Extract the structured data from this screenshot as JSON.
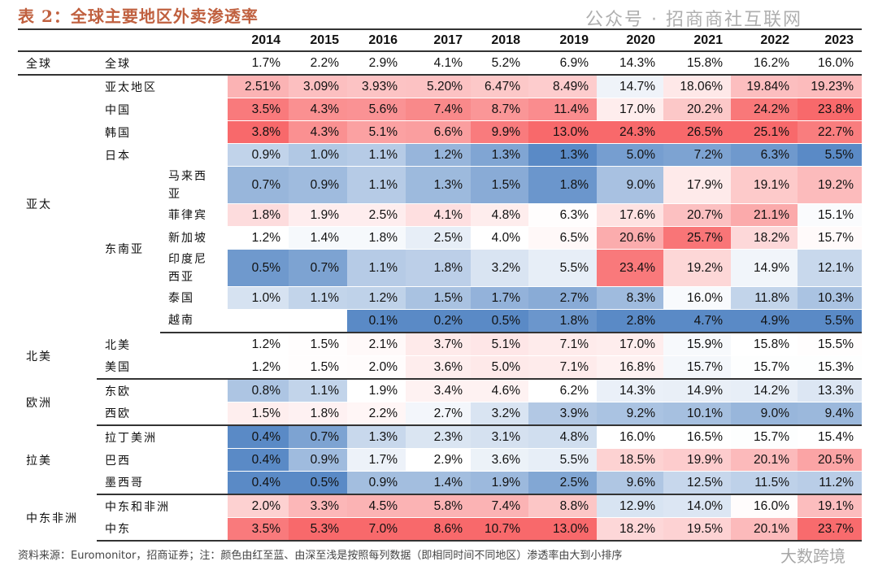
{
  "title": "表 2：全球主要地区外卖渗透率",
  "years": [
    "2014",
    "2015",
    "2016",
    "2017",
    "2018",
    "2019",
    "2020",
    "2021",
    "2022",
    "2023"
  ],
  "heat_colors": {
    "high": "#F8696B",
    "mid": "#FFFFFF",
    "low": "#5A8AC6"
  },
  "rows": [
    {
      "g": "全球",
      "s": "全球",
      "n": "",
      "v": [
        "1.7%",
        "2.2%",
        "2.9%",
        "4.1%",
        "5.2%",
        "6.9%",
        "14.3%",
        "15.8%",
        "16.2%",
        "16.0%"
      ],
      "heat": false
    },
    {
      "g": "亚太",
      "s": "亚太地区",
      "n": "",
      "v": [
        "2.51%",
        "3.09%",
        "3.93%",
        "5.20%",
        "6.47%",
        "8.49%",
        "14.7%",
        "18.06%",
        "19.84%",
        "19.23%"
      ]
    },
    {
      "g": "亚太",
      "s": "中国",
      "n": "",
      "v": [
        "3.5%",
        "4.3%",
        "5.6%",
        "7.4%",
        "8.7%",
        "11.4%",
        "17.0%",
        "20.2%",
        "24.2%",
        "23.8%"
      ]
    },
    {
      "g": "亚太",
      "s": "韩国",
      "n": "",
      "v": [
        "3.8%",
        "4.3%",
        "5.1%",
        "6.6%",
        "9.9%",
        "13.0%",
        "24.3%",
        "26.5%",
        "25.1%",
        "22.7%"
      ]
    },
    {
      "g": "亚太",
      "s": "日本",
      "n": "",
      "v": [
        "0.9%",
        "1.0%",
        "1.1%",
        "1.2%",
        "1.3%",
        "1.3%",
        "5.0%",
        "7.2%",
        "6.3%",
        "5.5%"
      ]
    },
    {
      "g": "亚太",
      "s": "东南亚",
      "n": "马来西亚",
      "v": [
        "0.7%",
        "0.9%",
        "1.1%",
        "1.3%",
        "1.5%",
        "1.8%",
        "9.0%",
        "17.9%",
        "19.1%",
        "19.2%"
      ]
    },
    {
      "g": "亚太",
      "s": "东南亚",
      "n": "菲律宾",
      "v": [
        "1.8%",
        "1.9%",
        "2.5%",
        "4.1%",
        "4.8%",
        "6.3%",
        "17.6%",
        "20.7%",
        "21.1%",
        "15.1%"
      ]
    },
    {
      "g": "亚太",
      "s": "东南亚",
      "n": "新加坡",
      "v": [
        "1.2%",
        "1.4%",
        "1.8%",
        "2.5%",
        "4.0%",
        "6.5%",
        "20.6%",
        "25.7%",
        "18.2%",
        "15.7%"
      ]
    },
    {
      "g": "亚太",
      "s": "东南亚",
      "n": "印度尼西亚",
      "v": [
        "0.5%",
        "0.7%",
        "1.1%",
        "1.8%",
        "3.2%",
        "5.5%",
        "23.4%",
        "19.2%",
        "14.9%",
        "12.1%"
      ]
    },
    {
      "g": "亚太",
      "s": "东南亚",
      "n": "泰国",
      "v": [
        "1.0%",
        "1.1%",
        "1.2%",
        "1.5%",
        "1.7%",
        "2.7%",
        "8.3%",
        "16.0%",
        "11.8%",
        "10.3%"
      ]
    },
    {
      "g": "亚太",
      "s": "东南亚",
      "n": "越南",
      "v": [
        "",
        "",
        "0.1%",
        "0.2%",
        "0.5%",
        "1.8%",
        "2.8%",
        "4.7%",
        "4.9%",
        "5.5%"
      ]
    },
    {
      "g": "北美",
      "s": "北美",
      "n": "",
      "v": [
        "1.2%",
        "1.5%",
        "2.1%",
        "3.7%",
        "5.1%",
        "7.1%",
        "17.0%",
        "15.9%",
        "15.8%",
        "15.5%"
      ]
    },
    {
      "g": "北美",
      "s": "美国",
      "n": "",
      "v": [
        "1.2%",
        "1.5%",
        "2.0%",
        "3.6%",
        "5.0%",
        "7.1%",
        "16.8%",
        "15.7%",
        "15.7%",
        "15.3%"
      ]
    },
    {
      "g": "欧洲",
      "s": "东欧",
      "n": "",
      "v": [
        "0.8%",
        "1.1%",
        "1.9%",
        "3.4%",
        "4.6%",
        "6.2%",
        "14.3%",
        "14.9%",
        "14.2%",
        "13.3%"
      ]
    },
    {
      "g": "欧洲",
      "s": "西欧",
      "n": "",
      "v": [
        "1.5%",
        "1.8%",
        "2.2%",
        "2.7%",
        "3.2%",
        "3.9%",
        "9.2%",
        "10.1%",
        "9.0%",
        "9.4%"
      ]
    },
    {
      "g": "拉美",
      "s": "拉丁美洲",
      "n": "",
      "v": [
        "0.4%",
        "0.7%",
        "1.3%",
        "2.3%",
        "3.1%",
        "4.8%",
        "16.0%",
        "16.5%",
        "15.7%",
        "15.4%"
      ]
    },
    {
      "g": "拉美",
      "s": "巴西",
      "n": "",
      "v": [
        "0.4%",
        "0.9%",
        "1.7%",
        "2.9%",
        "3.6%",
        "5.5%",
        "18.5%",
        "19.9%",
        "20.1%",
        "20.5%"
      ]
    },
    {
      "g": "拉美",
      "s": "墨西哥",
      "n": "",
      "v": [
        "0.4%",
        "0.5%",
        "0.9%",
        "1.4%",
        "1.9%",
        "2.5%",
        "9.6%",
        "12.5%",
        "11.5%",
        "11.2%"
      ]
    },
    {
      "g": "中东非洲",
      "s": "中东和非洲",
      "n": "",
      "v": [
        "2.0%",
        "3.3%",
        "4.5%",
        "5.8%",
        "7.4%",
        "8.8%",
        "12.9%",
        "14.0%",
        "16.0%",
        "19.1%"
      ]
    },
    {
      "g": "中东非洲",
      "s": "中东",
      "n": "",
      "v": [
        "3.5%",
        "5.3%",
        "7.0%",
        "8.6%",
        "10.7%",
        "13.0%",
        "18.2%",
        "19.5%",
        "20.1%",
        "23.7%"
      ]
    }
  ],
  "footnote": "资料来源：Euromonitor，招商证券；注：颜色由红至蓝、由深至浅是按照每列数据（即相同时间不同地区）渗透率由大到小排序",
  "watermark": "公众号 · 招商商社互联网",
  "watermark_logo": "大数跨境"
}
